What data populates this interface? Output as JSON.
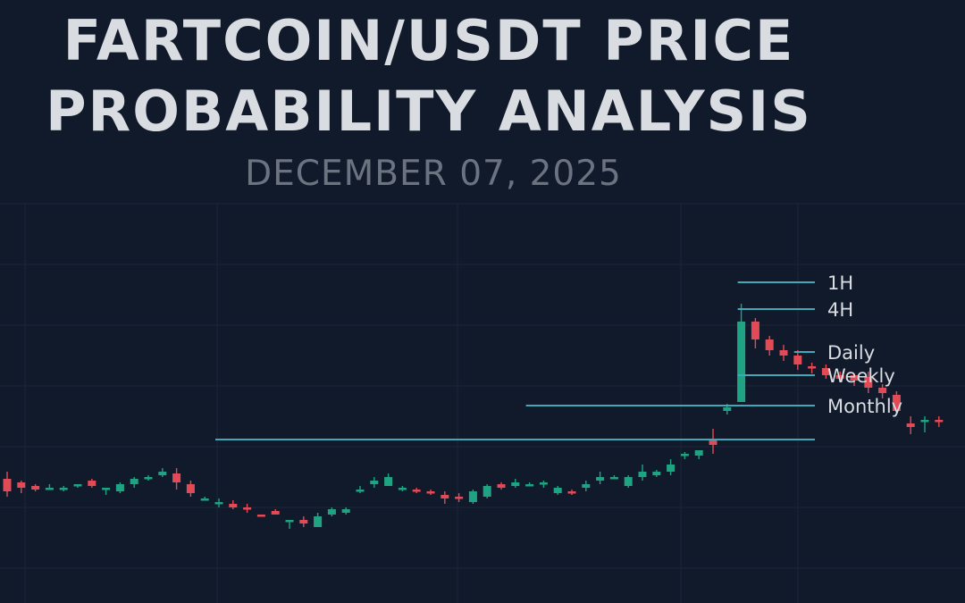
{
  "title_line1": "FARTCOIN/USDT PRICE",
  "title_line2": "PROBABILITY ANALYSIS",
  "date": "DECEMBER 07, 2025",
  "colors": {
    "background": "#111a2b",
    "up": "#1fa382",
    "down": "#e24a55",
    "level_line": "#3fa9b8",
    "grid": "#1b2538"
  },
  "chart_data": {
    "type": "candlestick",
    "candles": [
      [
        62,
        55,
        52,
        66
      ],
      [
        60,
        57,
        54,
        61
      ],
      [
        58,
        56,
        55,
        59
      ],
      [
        57,
        57,
        56,
        59
      ],
      [
        56,
        57,
        55,
        58
      ],
      [
        58,
        59,
        57,
        59
      ],
      [
        61,
        58,
        57,
        62
      ],
      [
        56,
        57,
        53,
        57
      ],
      [
        55,
        59,
        54,
        60
      ],
      [
        59,
        62,
        57,
        63
      ],
      [
        62,
        63,
        61,
        64
      ],
      [
        64,
        66,
        63,
        68
      ],
      [
        65,
        60,
        56,
        68
      ],
      [
        59,
        54,
        52,
        61
      ],
      [
        51,
        51,
        50,
        52
      ],
      [
        48,
        49,
        46,
        51
      ],
      [
        48,
        46,
        45,
        50
      ],
      [
        46,
        45,
        43,
        48
      ],
      [
        42,
        41,
        41,
        42
      ],
      [
        44,
        42,
        42,
        45
      ],
      [
        38,
        39,
        34,
        39
      ],
      [
        39,
        37,
        35,
        41
      ],
      [
        35,
        41,
        35,
        43
      ],
      [
        42,
        45,
        41,
        46
      ],
      [
        43,
        45,
        42,
        46
      ],
      [
        55,
        56,
        54,
        58
      ],
      [
        59,
        61,
        57,
        63
      ],
      [
        58,
        63,
        58,
        65
      ],
      [
        57,
        57,
        55,
        58
      ],
      [
        56,
        55,
        54,
        57
      ],
      [
        55,
        54,
        53,
        56
      ],
      [
        53,
        51,
        48,
        55
      ],
      [
        52,
        51,
        49,
        54
      ],
      [
        49,
        55,
        48,
        56
      ],
      [
        52,
        58,
        51,
        59
      ],
      [
        59,
        57,
        56,
        60
      ],
      [
        58,
        60,
        57,
        62
      ],
      [
        59,
        59,
        58,
        60
      ],
      [
        59,
        60,
        57,
        61
      ],
      [
        54,
        57,
        53,
        58
      ],
      [
        55,
        54,
        53,
        56
      ],
      [
        57,
        59,
        55,
        61
      ],
      [
        61,
        63,
        59,
        66
      ],
      [
        63,
        63,
        62,
        64
      ],
      [
        58,
        63,
        57,
        64
      ],
      [
        63,
        66,
        61,
        70
      ],
      [
        64,
        66,
        63,
        67
      ],
      [
        66,
        70,
        64,
        73
      ],
      [
        75,
        76,
        73,
        77
      ],
      [
        75,
        78,
        73,
        78
      ],
      [
        84,
        81,
        76,
        90
      ],
      [
        100,
        102,
        98,
        104
      ],
      [
        105,
        150,
        105,
        160
      ],
      [
        150,
        140,
        135,
        152
      ],
      [
        140,
        134,
        131,
        142
      ],
      [
        134,
        131,
        128,
        137
      ],
      [
        131,
        126,
        123,
        134
      ],
      [
        125,
        124,
        121,
        127
      ],
      [
        124,
        120,
        118,
        126
      ],
      [
        120,
        118,
        117,
        122
      ],
      [
        120,
        117,
        114,
        121
      ],
      [
        119,
        113,
        110,
        122
      ],
      [
        113,
        110,
        107,
        115
      ],
      [
        109,
        100,
        100,
        111
      ],
      [
        93,
        91,
        87,
        97
      ],
      [
        94,
        95,
        88,
        97
      ],
      [
        95,
        94,
        91,
        97
      ]
    ],
    "levels": [
      {
        "name": "1H",
        "price": 172
      },
      {
        "name": "4H",
        "price": 157
      },
      {
        "name": "Daily",
        "price": 133
      },
      {
        "name": "Weekly",
        "price": 120
      },
      {
        "name": "Monthly",
        "price": 103
      },
      {
        "name": "",
        "price": 84
      }
    ],
    "grid": true,
    "ylim": [
      0,
      200
    ]
  }
}
